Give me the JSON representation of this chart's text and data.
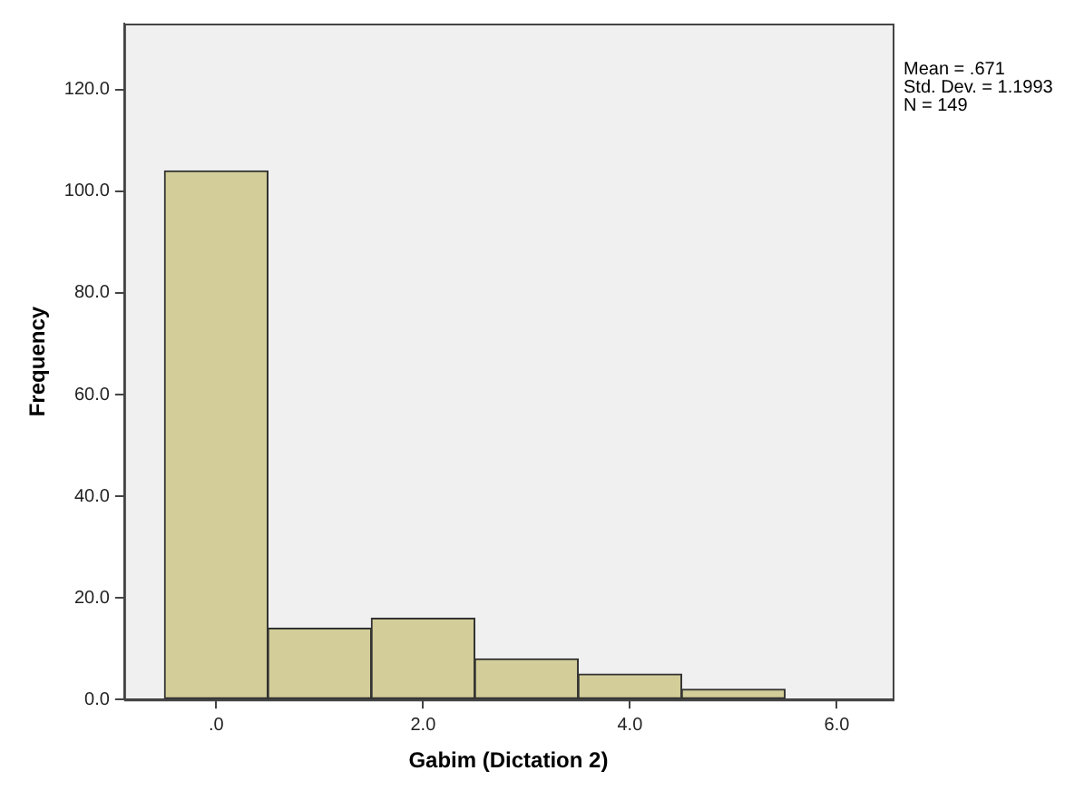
{
  "chart_data": {
    "type": "histogram",
    "xlabel": "Gabim (Dictation 2)",
    "ylabel": "Frequency",
    "bins": [
      -0.5,
      0.5,
      1.5,
      2.5,
      3.5,
      4.5,
      5.5
    ],
    "values": [
      104,
      14,
      16,
      8,
      5,
      2
    ],
    "color": "#d3ce99",
    "xlim": [
      -0.89,
      6.54
    ],
    "xticks": [
      {
        "value": 0,
        "label": ".0"
      },
      {
        "value": 2,
        "label": "2.0"
      },
      {
        "value": 4,
        "label": "4.0"
      },
      {
        "value": 6,
        "label": "6.0"
      }
    ],
    "ylim": [
      0,
      133
    ],
    "yticks": [
      {
        "value": 0,
        "label": "0.0"
      },
      {
        "value": 20,
        "label": "20.0"
      },
      {
        "value": 40,
        "label": "40.0"
      },
      {
        "value": 60,
        "label": "60.0"
      },
      {
        "value": 80,
        "label": "80.0"
      },
      {
        "value": 100,
        "label": "100.0"
      },
      {
        "value": 120,
        "label": "120.0"
      }
    ],
    "grid": false,
    "legend": false,
    "annotations": [
      "Mean = .671",
      "Std. Dev. = 1.1993",
      "N = 149"
    ]
  }
}
